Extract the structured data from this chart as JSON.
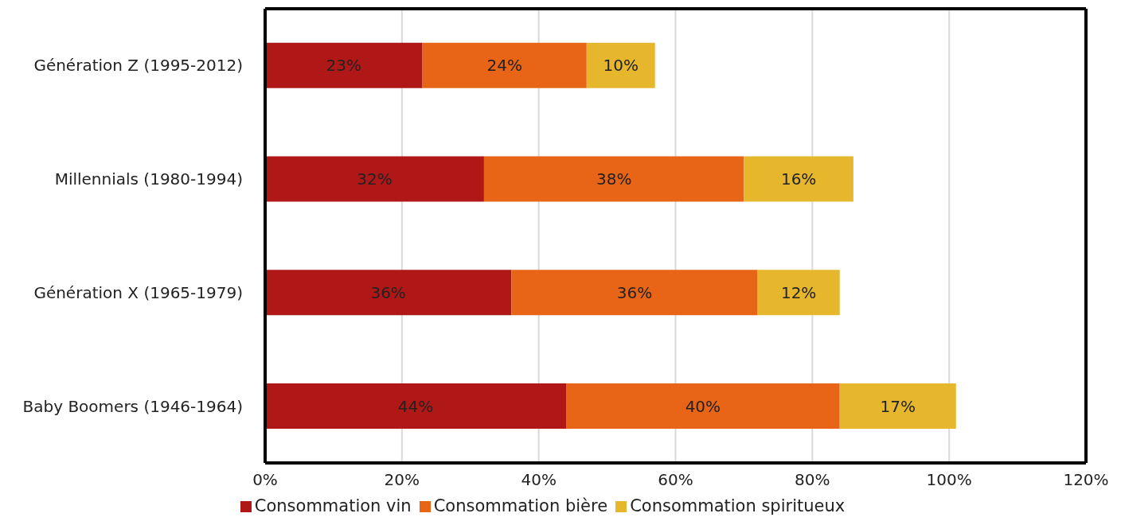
{
  "chart_data": {
    "type": "bar",
    "orientation": "horizontal",
    "stacked": true,
    "categories": [
      "Génération Z (1995-2012)",
      "Millennials (1980-1994)",
      "Génération X (1965-1979)",
      "Baby Boomers (1946-1964)"
    ],
    "series": [
      {
        "name": "Consommation vin",
        "color": "#b01717",
        "values": [
          23,
          32,
          36,
          44
        ],
        "value_labels": [
          "23%",
          "32%",
          "36%",
          "44%"
        ]
      },
      {
        "name": "Consommation bière",
        "color": "#e86417",
        "values": [
          24,
          38,
          36,
          40
        ],
        "value_labels": [
          "24%",
          "38%",
          "36%",
          "40%"
        ]
      },
      {
        "name": "Consommation spiritueux",
        "color": "#e6b72d",
        "values": [
          10,
          16,
          12,
          17
        ],
        "value_labels": [
          "10%",
          "16%",
          "12%",
          "17%"
        ]
      }
    ],
    "xlim": [
      0,
      120
    ],
    "xticks": [
      {
        "value": 0,
        "label": "0%"
      },
      {
        "value": 20,
        "label": "20%"
      },
      {
        "value": 40,
        "label": "40%"
      },
      {
        "value": 60,
        "label": "60%"
      },
      {
        "value": 80,
        "label": "80%"
      },
      {
        "value": 100,
        "label": "100%"
      },
      {
        "value": 120,
        "label": "120%"
      }
    ],
    "grid": "x",
    "legend": "bottom"
  }
}
